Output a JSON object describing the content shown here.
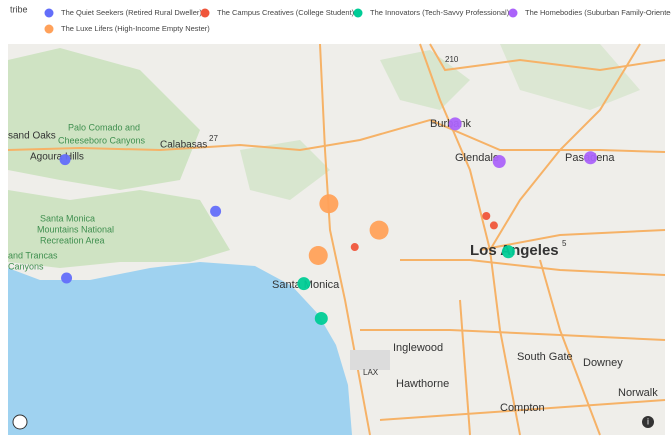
{
  "chart_data": {
    "type": "scatter",
    "legend_title": "tribe",
    "xlim": [
      -118.874,
      -118.01
    ],
    "ylim": [
      33.853,
      34.269
    ],
    "series": [
      {
        "name": "The Quiet Seekers (Retired Rural Dweller)",
        "color": "#636efa",
        "size": 5.5,
        "x": [
          -118.799,
          -118.601,
          -118.797
        ],
        "values": [
          34.146,
          34.091,
          34.02
        ]
      },
      {
        "name": "The Campus Creatives (College Student)",
        "color": "#ef553b",
        "size": 4,
        "x": [
          -118.418,
          -118.245,
          -118.235
        ],
        "values": [
          34.053,
          34.086,
          34.076
        ]
      },
      {
        "name": "The Innovators (Tech-Savvy Professional)",
        "color": "#00cc96",
        "size": 6.5,
        "x": [
          -118.485,
          -118.462,
          -118.216
        ],
        "values": [
          34.014,
          33.977,
          34.048
        ]
      },
      {
        "name": "The Homebodies (Suburban Family-Oriented)",
        "color": "#ab63fa",
        "size": 6.5,
        "x": [
          -118.286,
          -118.228,
          -118.108
        ],
        "values": [
          34.184,
          34.144,
          34.148
        ]
      },
      {
        "name": "The Luxe Lifers (High-Income Empty Nester)",
        "color": "#ffa15a",
        "size": 9.5,
        "x": [
          -118.452,
          -118.386,
          -118.466
        ],
        "values": [
          34.099,
          34.071,
          34.044
        ]
      }
    ],
    "places": [
      "Burbank",
      "Glendale",
      "Pasadena",
      "Los Angeles",
      "Santa Monica",
      "Inglewood",
      "Hawthorne",
      "Compton",
      "South Gate",
      "Downey",
      "Norwalk",
      "Calabasas",
      "Agoura Hills",
      "sand Oaks",
      "Palo Comado and",
      "Cheeseboro Canyons",
      "Santa Monica",
      "Mountains National",
      "Recreation Area",
      "and Trancas",
      "Canyons",
      "LAX",
      "27",
      "210",
      "5"
    ]
  }
}
